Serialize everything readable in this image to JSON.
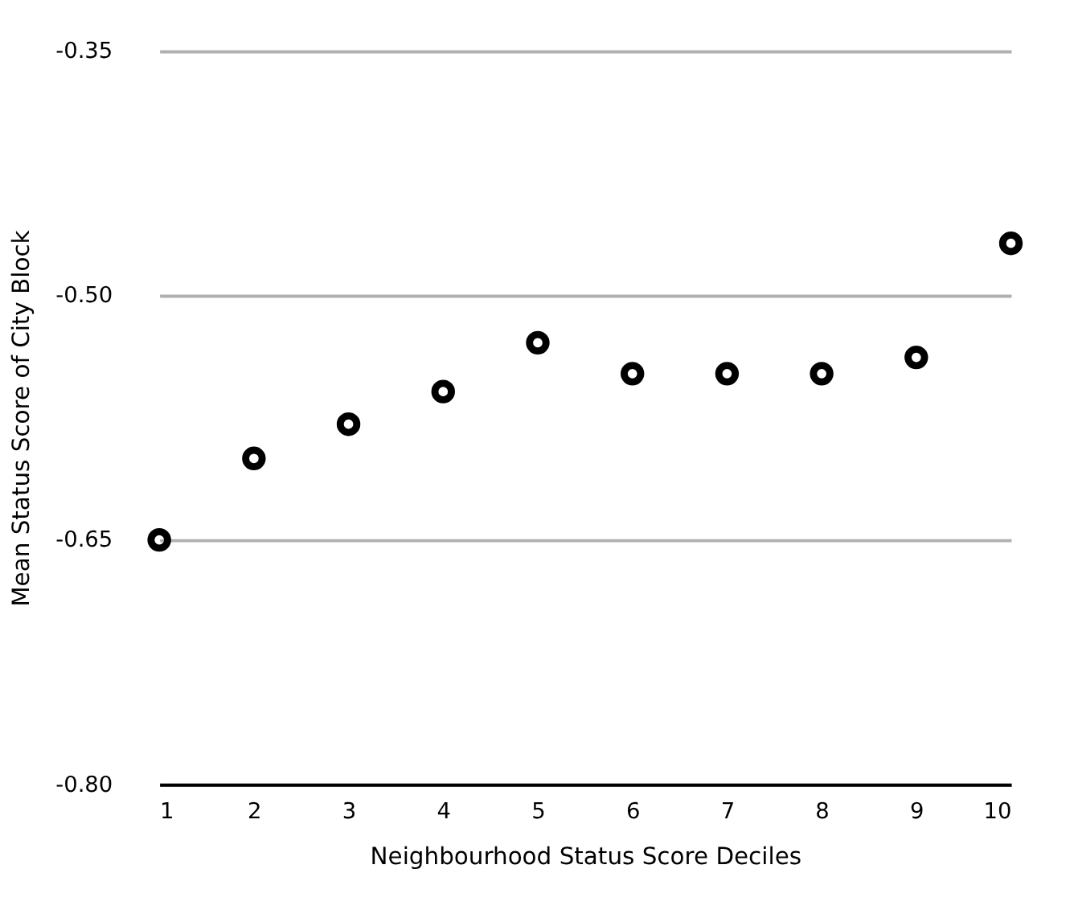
{
  "chart_data": {
    "type": "scatter",
    "xlabel": "Neighbourhood Status Score Deciles",
    "ylabel": "Mean Status Score of City Block",
    "x": [
      1,
      2,
      3,
      4,
      5,
      6,
      7,
      8,
      9,
      10
    ],
    "series": [
      {
        "color": "#000000",
        "values": [
          -0.65,
          -0.6,
          -0.579,
          -0.559,
          -0.529,
          -0.548,
          -0.548,
          -0.548,
          -0.538,
          -0.468
        ]
      }
    ],
    "xlim": [
      1,
      10
    ],
    "xticks": [
      1,
      2,
      3,
      4,
      5,
      6,
      7,
      8,
      9,
      10
    ],
    "ylim": [
      -0.8,
      -0.35
    ],
    "yticks": [
      {
        "value": -0.8,
        "label": "-0.80"
      },
      {
        "value": -0.65,
        "label": "-0.65"
      },
      {
        "value": -0.5,
        "label": "-0.50"
      },
      {
        "value": -0.35,
        "label": "-0.35"
      }
    ],
    "grid": "y",
    "marker": "circle"
  }
}
